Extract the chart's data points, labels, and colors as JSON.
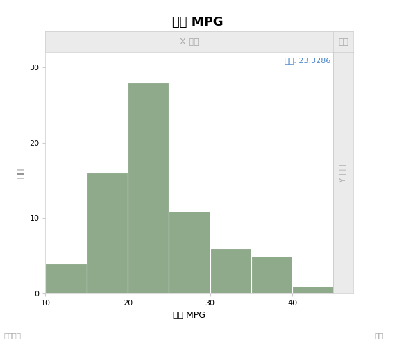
{
  "title": "混合 MPG",
  "xlabel": "混合 MPG",
  "ylabel_left": "计数",
  "ylabel_right": "Y 分组",
  "top_panel_label": "X 分组",
  "top_panel_right": "重叠",
  "bottom_left": "地图形状",
  "bottom_right": "频数",
  "mean_label": "均值: 23.3286",
  "mean_value": 23.3286,
  "bar_color": "#8faa8b",
  "bar_edge_color": "#ffffff",
  "background_color": "#ffffff",
  "panel_bg": "#ebebeb",
  "grid_color": "#cccccc",
  "bin_edges": [
    10,
    15,
    20,
    25,
    30,
    35,
    40,
    45
  ],
  "counts": [
    4,
    16,
    28,
    11,
    6,
    5,
    1
  ],
  "xlim": [
    10,
    45
  ],
  "ylim": [
    0,
    32
  ],
  "yticks": [
    0,
    10,
    20,
    30
  ],
  "xticks": [
    10,
    20,
    30,
    40
  ],
  "title_fontsize": 13,
  "axis_label_fontsize": 9,
  "tick_fontsize": 8,
  "annotation_fontsize": 8,
  "annotation_color": "#4a86c8",
  "panel_label_color": "#aaaaaa",
  "ylabel_color": "#666666"
}
